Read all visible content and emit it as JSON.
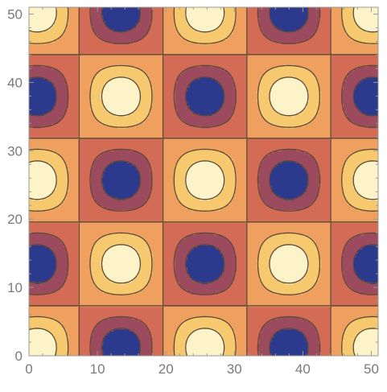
{
  "chart_data": {
    "type": "contour",
    "title": "",
    "xlabel": "",
    "ylabel": "",
    "xlim": [
      0,
      51
    ],
    "ylim": [
      0,
      51
    ],
    "x_ticks": [
      0,
      10,
      20,
      30,
      40,
      50
    ],
    "y_ticks": [
      0,
      10,
      20,
      30,
      40,
      50
    ],
    "tick_labels_x": [
      "0",
      "10",
      "20",
      "30",
      "40",
      "50"
    ],
    "tick_labels_y": [
      "0",
      "10",
      "20",
      "30",
      "40",
      "50"
    ],
    "function": "z = cos(2*pi*x/period) * cos(2*pi*y/period) checkerboard of peaks and troughs",
    "period": 24.5,
    "phase_origin": [
      1.2,
      1.2
    ],
    "contour_levels": [
      -0.75,
      -0.4,
      0,
      0.4,
      0.75
    ],
    "level_colors": [
      "#2b3a8c",
      "#9c4a5e",
      "#d46b55",
      "#f0a05e",
      "#f7c96e",
      "#fdf3c8"
    ],
    "contour_line_color": "#5a4a3a",
    "grid": false
  }
}
